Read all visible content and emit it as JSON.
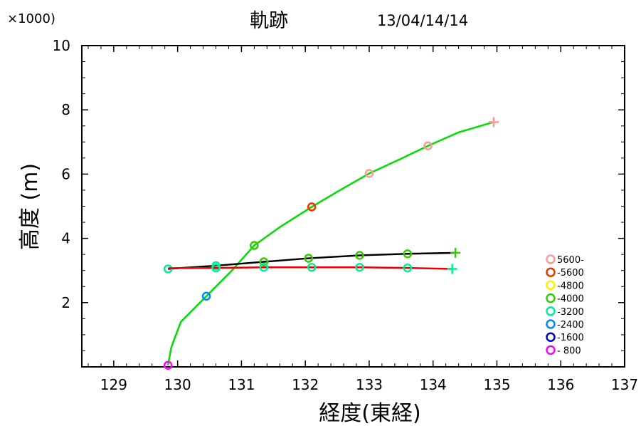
{
  "chart_data": {
    "type": "line",
    "title": "軌跡",
    "date": "13/04/14/14",
    "multiplier": "×1000)",
    "xlabel": "経度(東経)",
    "ylabel": "高度 (m)",
    "xlim": [
      128.5,
      137.0
    ],
    "ylim": [
      0,
      10
    ],
    "xticks": [
      129,
      130,
      131,
      132,
      133,
      134,
      135,
      136,
      137
    ],
    "yticks": [
      2,
      4,
      6,
      8,
      10
    ],
    "series": [
      {
        "color": "#00dd00",
        "points": [
          [
            129.85,
            0.05
          ],
          [
            129.9,
            0.6
          ],
          [
            130.05,
            1.4
          ],
          [
            130.45,
            2.2
          ],
          [
            130.85,
            3.0
          ],
          [
            131.2,
            3.78
          ],
          [
            131.6,
            4.35
          ],
          [
            132.1,
            4.98
          ],
          [
            132.5,
            5.45
          ],
          [
            133.0,
            6.02
          ],
          [
            133.5,
            6.48
          ],
          [
            133.92,
            6.88
          ],
          [
            134.4,
            7.3
          ],
          [
            134.95,
            7.62
          ]
        ],
        "markers": [
          {
            "x": 129.85,
            "y": 0.05,
            "color": "#ff00ff"
          },
          {
            "x": 130.45,
            "y": 2.2,
            "color": "#0088ff"
          },
          {
            "x": 131.2,
            "y": 3.78,
            "color": "#33cc00"
          },
          {
            "x": 132.1,
            "y": 4.98,
            "color": "#ee3300"
          },
          {
            "x": 133.0,
            "y": 6.02,
            "color": "#ff9999"
          },
          {
            "x": 133.92,
            "y": 6.88,
            "color": "#ff9999"
          }
        ],
        "end": {
          "x": 134.95,
          "y": 7.62,
          "color": "#ff9999"
        }
      },
      {
        "color": "#000000",
        "points": [
          [
            129.85,
            3.05
          ],
          [
            130.6,
            3.15
          ],
          [
            131.35,
            3.27
          ],
          [
            132.05,
            3.38
          ],
          [
            132.85,
            3.47
          ],
          [
            133.6,
            3.52
          ],
          [
            134.35,
            3.55
          ]
        ],
        "markers": [
          {
            "x": 129.85,
            "y": 3.05,
            "color": "#00ee99"
          },
          {
            "x": 130.6,
            "y": 3.15,
            "color": "#00ee99"
          },
          {
            "x": 131.35,
            "y": 3.27,
            "color": "#33cc00"
          },
          {
            "x": 132.05,
            "y": 3.38,
            "color": "#33cc00"
          },
          {
            "x": 132.85,
            "y": 3.47,
            "color": "#33cc00"
          },
          {
            "x": 133.6,
            "y": 3.52,
            "color": "#33cc00"
          }
        ],
        "end": {
          "x": 134.35,
          "y": 3.55,
          "color": "#33cc00"
        }
      },
      {
        "color": "#ee0000",
        "points": [
          [
            129.85,
            3.07
          ],
          [
            130.6,
            3.08
          ],
          [
            131.35,
            3.1
          ],
          [
            132.1,
            3.1
          ],
          [
            132.85,
            3.1
          ],
          [
            133.6,
            3.08
          ],
          [
            134.3,
            3.05
          ]
        ],
        "markers": [
          {
            "x": 130.6,
            "y": 3.08,
            "color": "#00ee99"
          },
          {
            "x": 131.35,
            "y": 3.1,
            "color": "#00ee99"
          },
          {
            "x": 132.1,
            "y": 3.1,
            "color": "#00ee99"
          },
          {
            "x": 132.85,
            "y": 3.1,
            "color": "#00ee99"
          },
          {
            "x": 133.6,
            "y": 3.08,
            "color": "#00ee99"
          }
        ],
        "end": {
          "x": 134.3,
          "y": 3.05,
          "color": "#00ee99"
        }
      }
    ],
    "legend": [
      {
        "label": "5600-",
        "color": "#ff9999"
      },
      {
        "label": "-5600",
        "color": "#ee3300"
      },
      {
        "label": "-4800",
        "color": "#ffee00"
      },
      {
        "label": "-4000",
        "color": "#33cc00"
      },
      {
        "label": "-3200",
        "color": "#00ee99"
      },
      {
        "label": "-2400",
        "color": "#0088ff"
      },
      {
        "label": "-1600",
        "color": "#0000cc"
      },
      {
        "label": "- 800",
        "color": "#ff00ff"
      }
    ]
  }
}
